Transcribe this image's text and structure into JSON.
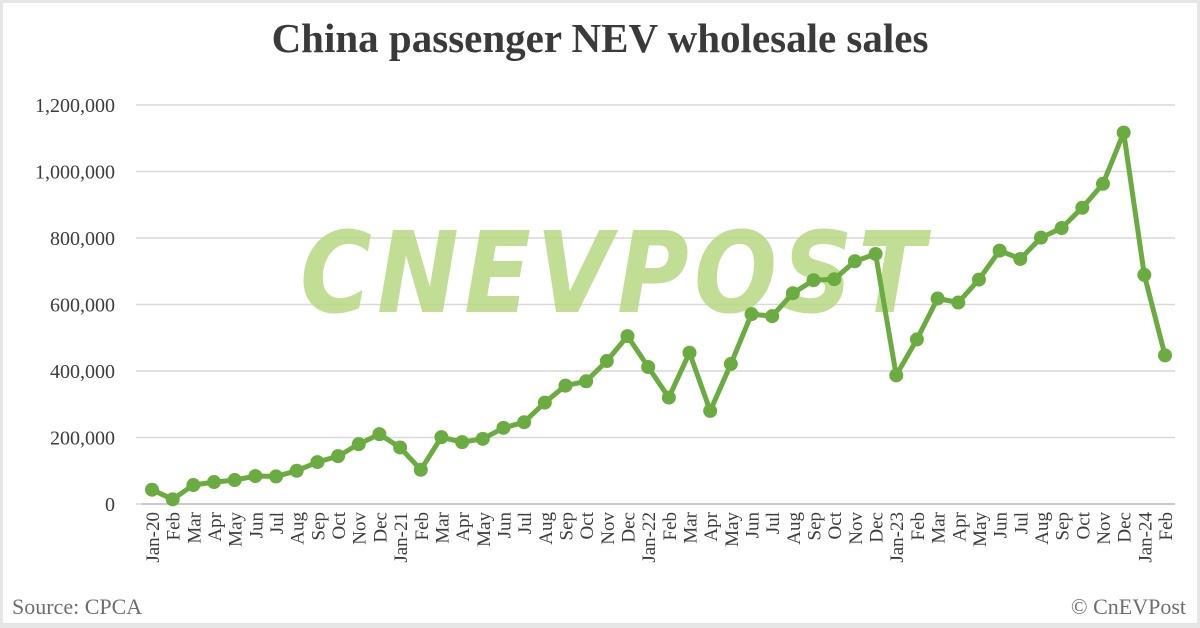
{
  "title": "China passenger NEV wholesale sales",
  "footer": {
    "source": "Source: CPCA",
    "copyright": "© CnEVPost"
  },
  "watermark": "CNEVPOST",
  "colors": {
    "line": "#6aac3f",
    "marker": "#6aac3f",
    "watermark": "#b7d982",
    "grid": "#d9d9d9",
    "text": "#3c3c3c"
  },
  "chart_data": {
    "type": "line",
    "title": "China passenger NEV wholesale sales",
    "xlabel": "",
    "ylabel": "",
    "ylim": [
      0,
      1200000
    ],
    "yticks": [
      0,
      200000,
      400000,
      600000,
      800000,
      1000000,
      1200000
    ],
    "ytick_labels": [
      "0",
      "200,000",
      "400,000",
      "600,000",
      "800,000",
      "1,000,000",
      "1,200,000"
    ],
    "grid": true,
    "legend": "none",
    "categories": [
      "Jan-20",
      "Feb",
      "Mar",
      "Apr",
      "May",
      "Jun",
      "Jul",
      "Aug",
      "Sep",
      "Oct",
      "Nov",
      "Dec",
      "Jan-21",
      "Feb",
      "Mar",
      "Apr",
      "May",
      "Jun",
      "Jul",
      "Aug",
      "Sep",
      "Oct",
      "Nov",
      "Dec",
      "Jan-22",
      "Feb",
      "Mar",
      "Apr",
      "May",
      "Jun",
      "Jul",
      "Aug",
      "Sep",
      "Oct",
      "Nov",
      "Dec",
      "Jan-23",
      "Feb",
      "Mar",
      "Apr",
      "May",
      "Jun",
      "Jul",
      "Aug",
      "Sep",
      "Oct",
      "Nov",
      "Dec",
      "Jan-24",
      "Feb"
    ],
    "series": [
      {
        "name": "NEV wholesale sales",
        "values": [
          43000,
          14000,
          57000,
          66000,
          72000,
          84000,
          83000,
          100000,
          126000,
          144000,
          180000,
          210000,
          170000,
          103000,
          201000,
          186000,
          196000,
          229000,
          246000,
          305000,
          356000,
          369000,
          430000,
          505000,
          412000,
          320000,
          455000,
          280000,
          421000,
          571000,
          565000,
          634000,
          673000,
          676000,
          730000,
          752000,
          387000,
          495000,
          618000,
          606000,
          675000,
          762000,
          737000,
          801000,
          830000,
          891000,
          963000,
          1117000,
          689000,
          447000
        ]
      }
    ]
  }
}
